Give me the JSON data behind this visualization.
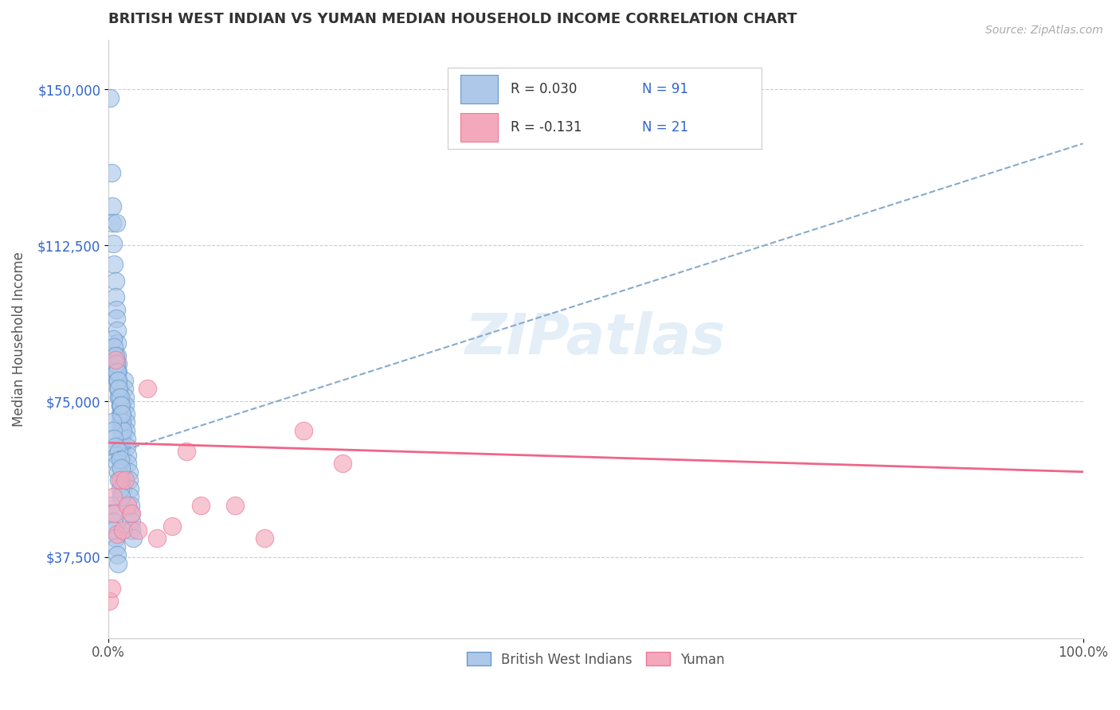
{
  "title": "BRITISH WEST INDIAN VS YUMAN MEDIAN HOUSEHOLD INCOME CORRELATION CHART",
  "source_text": "Source: ZipAtlas.com",
  "ylabel": "Median Household Income",
  "xlim": [
    0.0,
    1.0
  ],
  "ylim": [
    18000,
    162000
  ],
  "yticks": [
    37500,
    75000,
    112500,
    150000
  ],
  "ytick_labels": [
    "$37,500",
    "$75,000",
    "$112,500",
    "$150,000"
  ],
  "xtick_labels": [
    "0.0%",
    "100.0%"
  ],
  "blue_color": "#adc8e8",
  "pink_color": "#f4a8bc",
  "blue_edge_color": "#6699cc",
  "pink_edge_color": "#ee7799",
  "blue_line_color": "#88aacc",
  "pink_line_color": "#ee6688",
  "legend_text_color": "#3366cc",
  "title_color": "#333333",
  "grid_color": "#cccccc",
  "background_color": "#ffffff",
  "watermark": "ZIPatlas",
  "blue_scatter_x": [
    0.002,
    0.003,
    0.004,
    0.004,
    0.005,
    0.006,
    0.007,
    0.007,
    0.008,
    0.008,
    0.008,
    0.009,
    0.009,
    0.009,
    0.01,
    0.01,
    0.01,
    0.011,
    0.011,
    0.012,
    0.012,
    0.012,
    0.013,
    0.013,
    0.013,
    0.014,
    0.014,
    0.015,
    0.015,
    0.015,
    0.016,
    0.016,
    0.017,
    0.017,
    0.018,
    0.018,
    0.018,
    0.019,
    0.019,
    0.02,
    0.02,
    0.021,
    0.021,
    0.022,
    0.022,
    0.023,
    0.023,
    0.024,
    0.024,
    0.025,
    0.006,
    0.007,
    0.008,
    0.009,
    0.01,
    0.011,
    0.012,
    0.013,
    0.014,
    0.015,
    0.005,
    0.006,
    0.007,
    0.008,
    0.009,
    0.01,
    0.011,
    0.012,
    0.013,
    0.014,
    0.004,
    0.005,
    0.006,
    0.007,
    0.008,
    0.009,
    0.01,
    0.011,
    0.012,
    0.013,
    0.003,
    0.004,
    0.005,
    0.006,
    0.007,
    0.008,
    0.009,
    0.01,
    0.011,
    0.012,
    0.013
  ],
  "blue_scatter_y": [
    148000,
    130000,
    122000,
    118000,
    113000,
    108000,
    104000,
    100000,
    97000,
    118000,
    95000,
    92000,
    89000,
    86000,
    84000,
    82000,
    80000,
    78000,
    76000,
    74000,
    72000,
    70000,
    68000,
    66000,
    64000,
    62000,
    60000,
    58000,
    56000,
    54000,
    80000,
    78000,
    76000,
    74000,
    72000,
    70000,
    68000,
    66000,
    64000,
    62000,
    60000,
    58000,
    56000,
    54000,
    52000,
    50000,
    48000,
    46000,
    44000,
    42000,
    86000,
    84000,
    82000,
    80000,
    78000,
    76000,
    74000,
    72000,
    70000,
    68000,
    90000,
    88000,
    86000,
    84000,
    82000,
    80000,
    78000,
    76000,
    74000,
    72000,
    70000,
    68000,
    66000,
    64000,
    62000,
    60000,
    58000,
    56000,
    54000,
    52000,
    50000,
    48000,
    46000,
    44000,
    42000,
    40000,
    38000,
    36000,
    63000,
    61000,
    59000
  ],
  "pink_scatter_x": [
    0.001,
    0.003,
    0.005,
    0.006,
    0.007,
    0.009,
    0.012,
    0.015,
    0.017,
    0.02,
    0.024,
    0.03,
    0.04,
    0.05,
    0.065,
    0.08,
    0.095,
    0.13,
    0.16,
    0.2,
    0.24
  ],
  "pink_scatter_y": [
    27000,
    30000,
    52000,
    48000,
    85000,
    43000,
    56000,
    44000,
    56000,
    50000,
    48000,
    44000,
    78000,
    42000,
    45000,
    63000,
    50000,
    50000,
    42000,
    68000,
    60000
  ],
  "blue_line_x0": 0.0,
  "blue_line_x1": 1.0,
  "blue_line_y0": 62000,
  "blue_line_y1": 137000,
  "pink_line_x0": 0.0,
  "pink_line_x1": 1.0,
  "pink_line_y0": 65000,
  "pink_line_y1": 58000
}
